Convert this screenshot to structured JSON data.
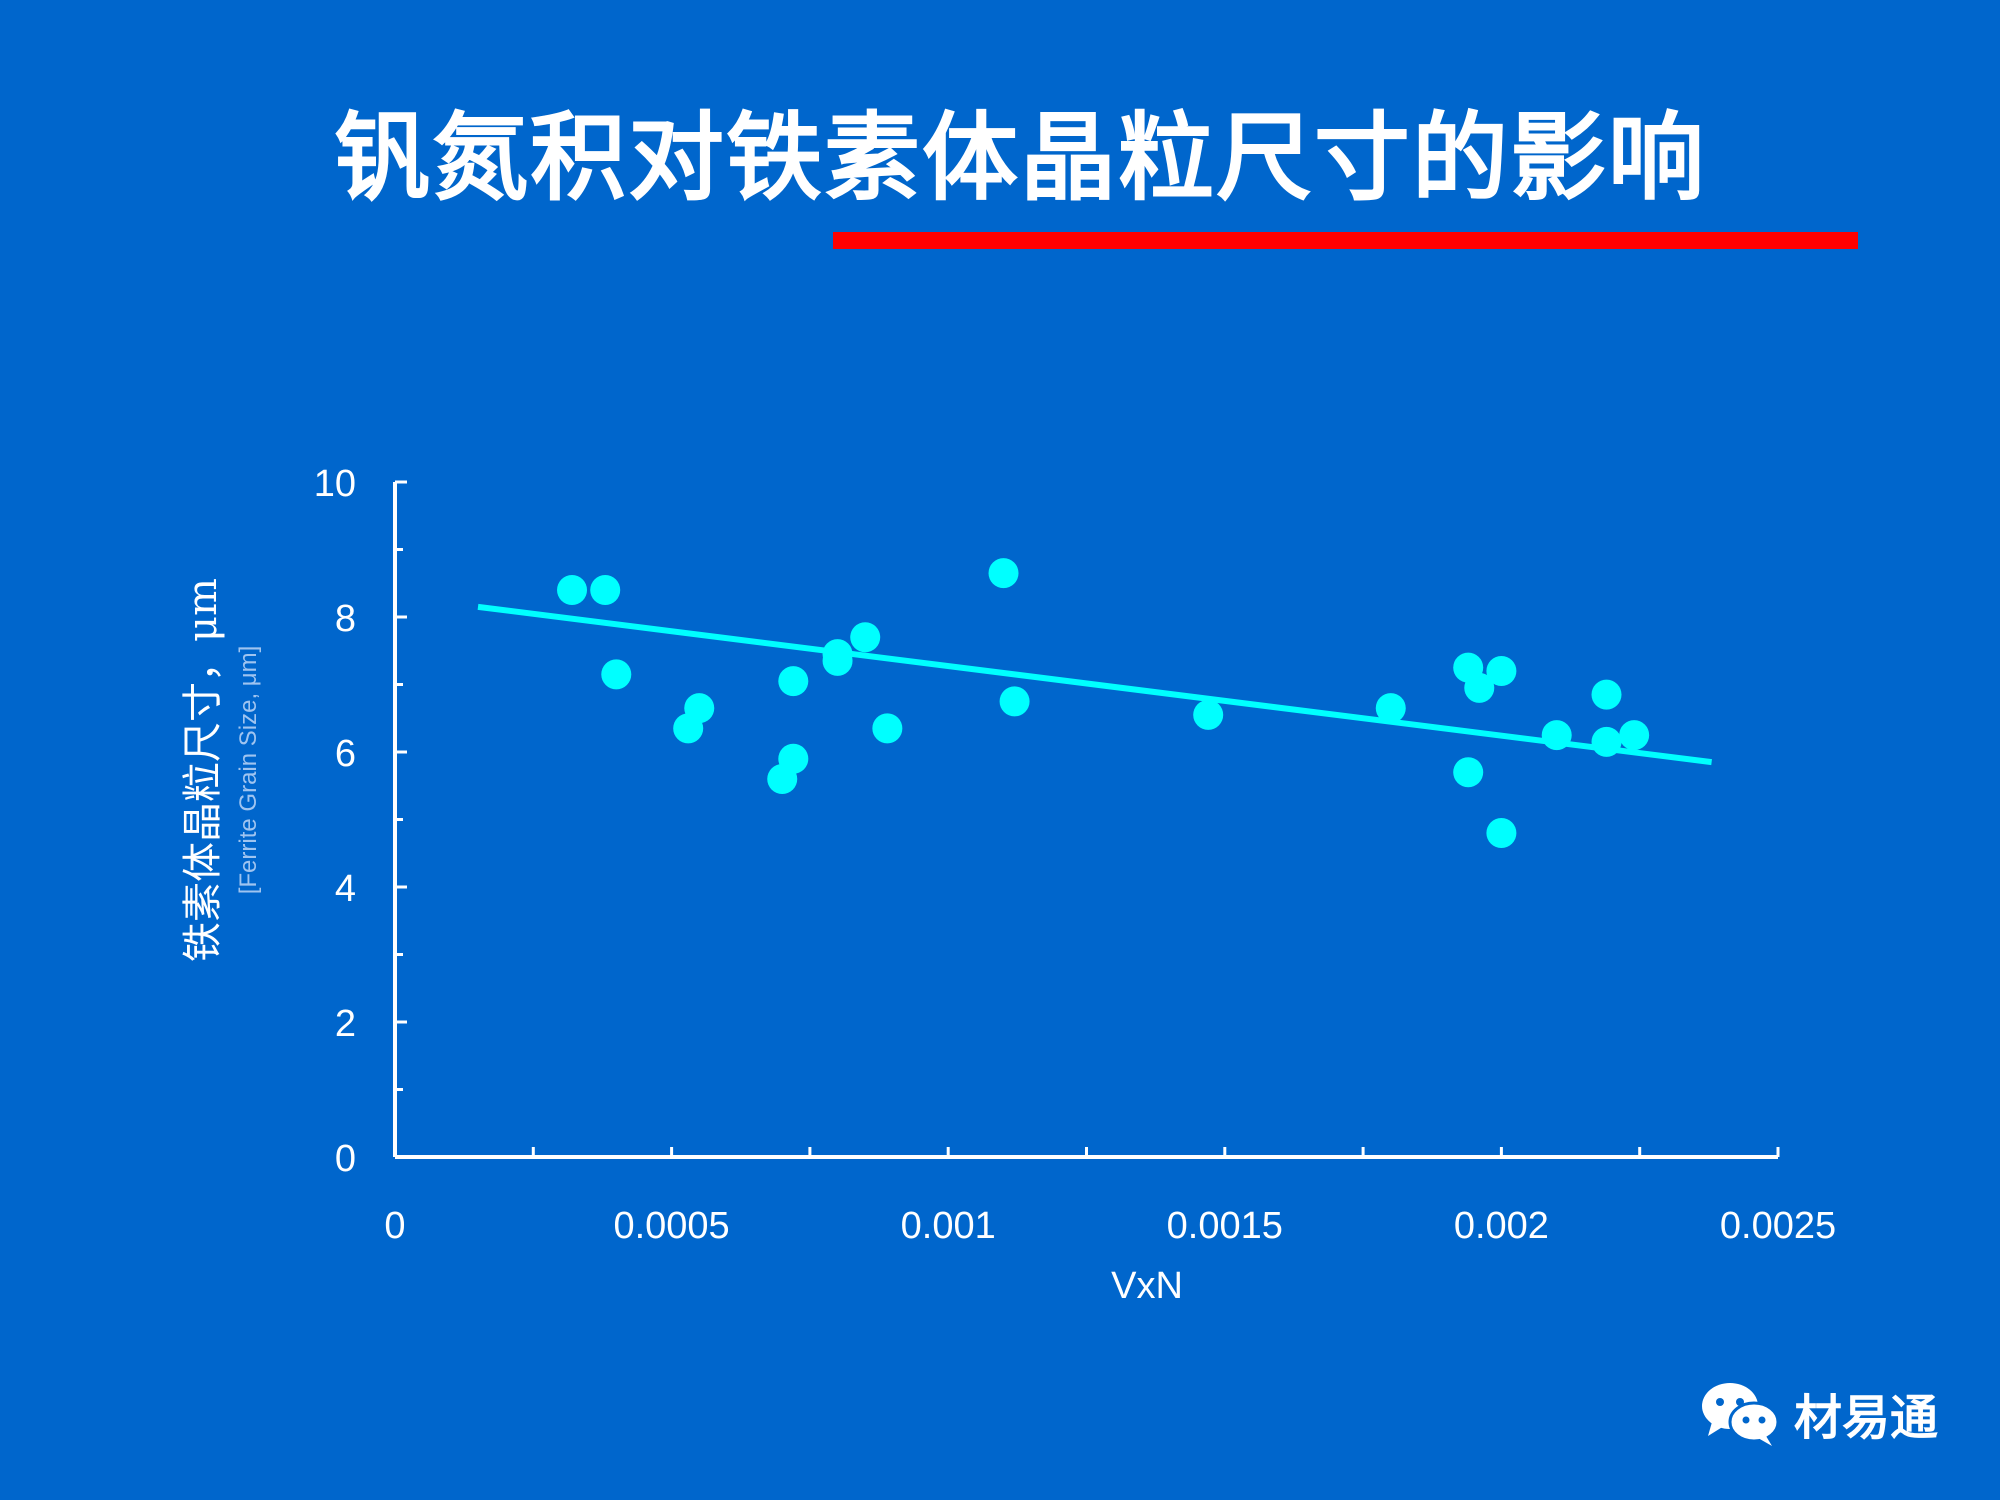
{
  "slide": {
    "title": "钒氮积对铁素体晶粒尺寸的影响",
    "watermark": "材易通"
  },
  "colors": {
    "background": "#0066cc",
    "points": "#00ffff",
    "trend": "#00ffff",
    "underline": "#ff0000"
  },
  "chart_data": {
    "type": "scatter",
    "xlabel": "VxN",
    "ylabel": "铁素体晶粒尺寸，μm",
    "ylabel_sub": "[Ferrite Grain Size, μm]",
    "xlim": [
      0,
      0.0025
    ],
    "ylim": [
      0,
      10
    ],
    "x_ticks": [
      "0",
      "0.0005",
      "0.001",
      "0.0015",
      "0.002",
      "0.0025"
    ],
    "y_ticks": [
      "0",
      "2",
      "4",
      "6",
      "8",
      "10"
    ],
    "grid": false,
    "points": [
      {
        "x": 0.00032,
        "y": 8.4
      },
      {
        "x": 0.00038,
        "y": 8.4
      },
      {
        "x": 0.0004,
        "y": 7.15
      },
      {
        "x": 0.00053,
        "y": 6.35
      },
      {
        "x": 0.00055,
        "y": 6.65
      },
      {
        "x": 0.0007,
        "y": 5.6
      },
      {
        "x": 0.00072,
        "y": 7.05
      },
      {
        "x": 0.00072,
        "y": 5.9
      },
      {
        "x": 0.0008,
        "y": 7.35
      },
      {
        "x": 0.0008,
        "y": 7.45
      },
      {
        "x": 0.00085,
        "y": 7.7
      },
      {
        "x": 0.00089,
        "y": 6.35
      },
      {
        "x": 0.0011,
        "y": 8.65
      },
      {
        "x": 0.00112,
        "y": 6.75
      },
      {
        "x": 0.00147,
        "y": 6.55
      },
      {
        "x": 0.0018,
        "y": 6.65
      },
      {
        "x": 0.00194,
        "y": 7.25
      },
      {
        "x": 0.00196,
        "y": 6.95
      },
      {
        "x": 0.002,
        "y": 7.2
      },
      {
        "x": 0.00194,
        "y": 5.7
      },
      {
        "x": 0.002,
        "y": 4.8
      },
      {
        "x": 0.0021,
        "y": 6.25
      },
      {
        "x": 0.00219,
        "y": 6.85
      },
      {
        "x": 0.00219,
        "y": 6.15
      },
      {
        "x": 0.00224,
        "y": 6.25
      }
    ],
    "trend_line": {
      "x": [
        0.00015,
        0.00238
      ],
      "y": [
        8.15,
        5.85
      ]
    }
  }
}
